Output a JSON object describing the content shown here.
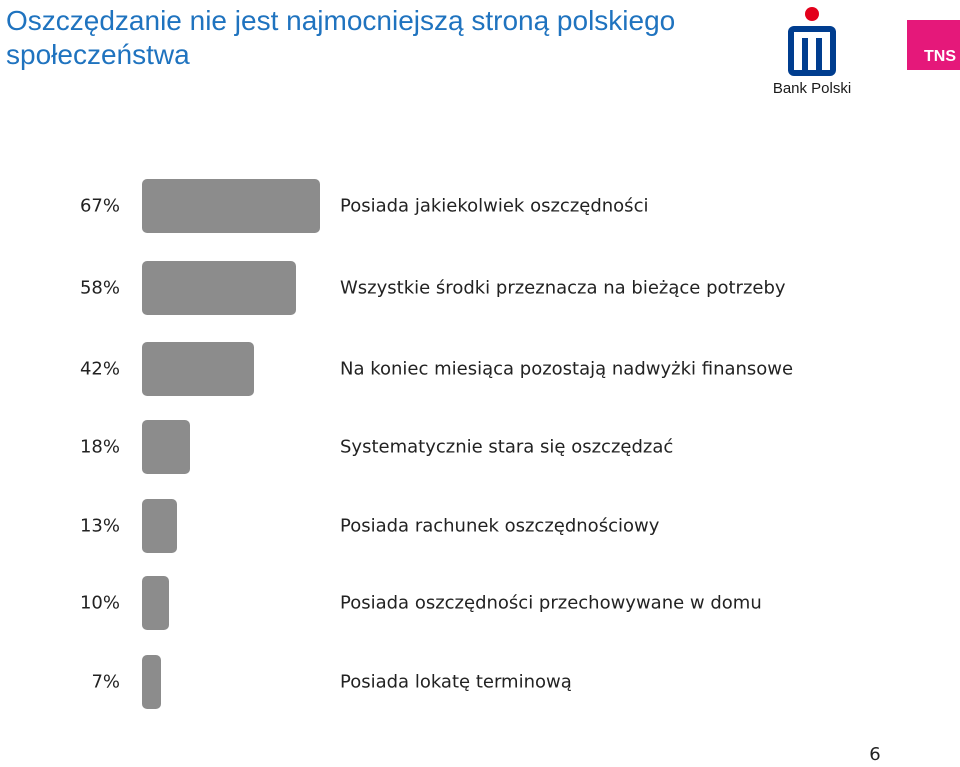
{
  "header": {
    "title": "Oszczędzanie nie jest najmocniejszą stroną polskiego społeczeństwa",
    "logo_left": "Bank Polski",
    "logo_right": "TNS"
  },
  "colors": {
    "title": "#1f73bf",
    "bar": "#8c8c8c",
    "tns": "#e5187a",
    "pko": "#003d8f",
    "pko_dot": "#e3001b"
  },
  "chart_data": {
    "type": "bar",
    "orientation": "horizontal",
    "title": "Oszczędzanie nie jest najmocniejszą stroną polskiego społeczeństwa",
    "categories": [
      "Posiada jakiekolwiek oszczędności",
      "Wszystkie środki przeznacza na bieżące potrzeby",
      "Na koniec miesiąca pozostają nadwyżki finansowe",
      "Systematycznie stara się oszczędzać",
      "Posiada rachunek oszczędnościowy",
      "Posiada oszczędności przechowywane w domu",
      "Posiada lokatę terminową"
    ],
    "values": [
      67,
      58,
      42,
      18,
      13,
      10,
      7
    ],
    "value_labels": [
      "67%",
      "58%",
      "42%",
      "18%",
      "13%",
      "10%",
      "7%"
    ],
    "unit": "%",
    "grid": false
  },
  "page_number": "6"
}
